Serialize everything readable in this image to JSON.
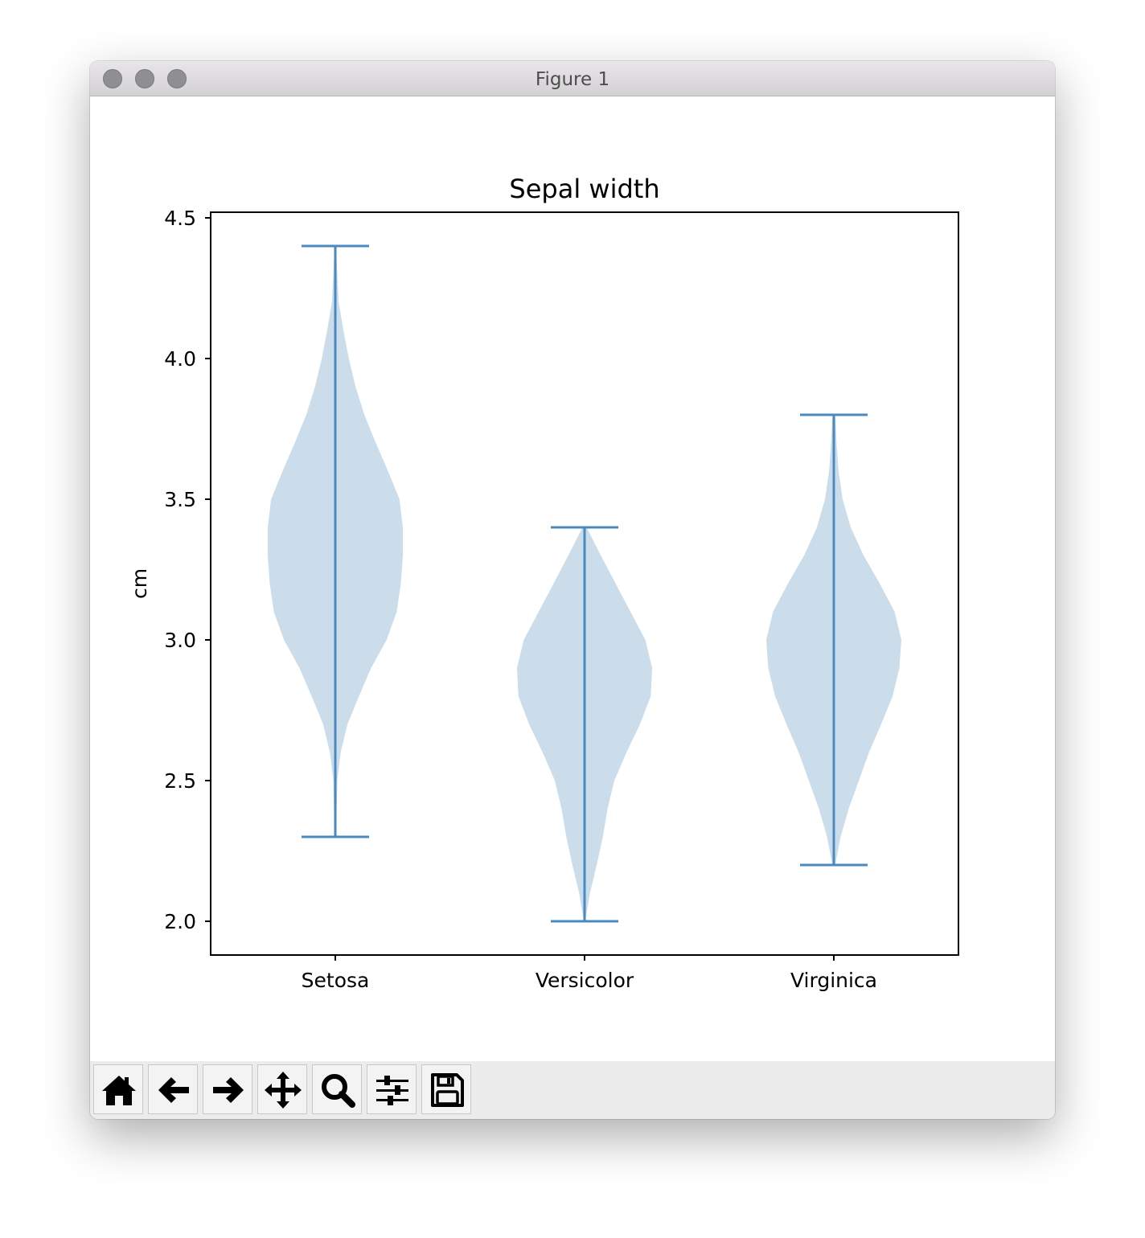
{
  "window": {
    "title": "Figure 1"
  },
  "toolbar": {
    "buttons": [
      {
        "name": "home-button",
        "icon": "home-icon"
      },
      {
        "name": "back-button",
        "icon": "arrow-left-icon"
      },
      {
        "name": "forward-button",
        "icon": "arrow-right-icon"
      },
      {
        "name": "pan-button",
        "icon": "move-icon"
      },
      {
        "name": "zoom-button",
        "icon": "magnifier-icon"
      },
      {
        "name": "configure-subplots-button",
        "icon": "sliders-icon"
      },
      {
        "name": "save-button",
        "icon": "floppy-disk-icon"
      }
    ]
  },
  "colors": {
    "violin_fill": "#cbdcea",
    "violin_line": "#4a8ac0",
    "axes": "#000000"
  },
  "chart_data": {
    "type": "violin",
    "title": "Sepal width",
    "xlabel": "",
    "ylabel": "cm",
    "categories": [
      "Setosa",
      "Versicolor",
      "Virginica"
    ],
    "ylim": [
      1.88,
      4.52
    ],
    "yticks": [
      2.0,
      2.5,
      3.0,
      3.5,
      4.0,
      4.5
    ],
    "ytick_labels": [
      "2.0",
      "2.5",
      "3.0",
      "3.5",
      "4.0",
      "4.5"
    ],
    "series": [
      {
        "min": 2.3,
        "max": 4.4,
        "density": [
          [
            2.3,
            0.01
          ],
          [
            2.4,
            0.02
          ],
          [
            2.5,
            0.03
          ],
          [
            2.6,
            0.08
          ],
          [
            2.7,
            0.18
          ],
          [
            2.8,
            0.35
          ],
          [
            2.9,
            0.53
          ],
          [
            3.0,
            0.76
          ],
          [
            3.1,
            0.91
          ],
          [
            3.2,
            0.97
          ],
          [
            3.3,
            1.0
          ],
          [
            3.4,
            1.0
          ],
          [
            3.5,
            0.95
          ],
          [
            3.6,
            0.78
          ],
          [
            3.7,
            0.6
          ],
          [
            3.8,
            0.43
          ],
          [
            3.9,
            0.3
          ],
          [
            4.0,
            0.2
          ],
          [
            4.1,
            0.12
          ],
          [
            4.2,
            0.05
          ],
          [
            4.3,
            0.03
          ],
          [
            4.4,
            0.01
          ]
        ]
      },
      {
        "min": 2.0,
        "max": 3.4,
        "density": [
          [
            2.0,
            0.01
          ],
          [
            2.1,
            0.08
          ],
          [
            2.2,
            0.18
          ],
          [
            2.3,
            0.27
          ],
          [
            2.4,
            0.34
          ],
          [
            2.5,
            0.44
          ],
          [
            2.6,
            0.62
          ],
          [
            2.7,
            0.82
          ],
          [
            2.8,
            0.98
          ],
          [
            2.9,
            1.0
          ],
          [
            3.0,
            0.9
          ],
          [
            3.1,
            0.68
          ],
          [
            3.2,
            0.46
          ],
          [
            3.3,
            0.24
          ],
          [
            3.4,
            0.03
          ]
        ]
      },
      {
        "min": 2.2,
        "max": 3.8,
        "density": [
          [
            2.2,
            0.02
          ],
          [
            2.3,
            0.1
          ],
          [
            2.4,
            0.22
          ],
          [
            2.5,
            0.37
          ],
          [
            2.6,
            0.52
          ],
          [
            2.7,
            0.7
          ],
          [
            2.8,
            0.87
          ],
          [
            2.9,
            0.97
          ],
          [
            3.0,
            1.0
          ],
          [
            3.1,
            0.9
          ],
          [
            3.2,
            0.68
          ],
          [
            3.3,
            0.44
          ],
          [
            3.4,
            0.25
          ],
          [
            3.5,
            0.13
          ],
          [
            3.6,
            0.07
          ],
          [
            3.7,
            0.04
          ],
          [
            3.8,
            0.02
          ]
        ]
      }
    ]
  }
}
